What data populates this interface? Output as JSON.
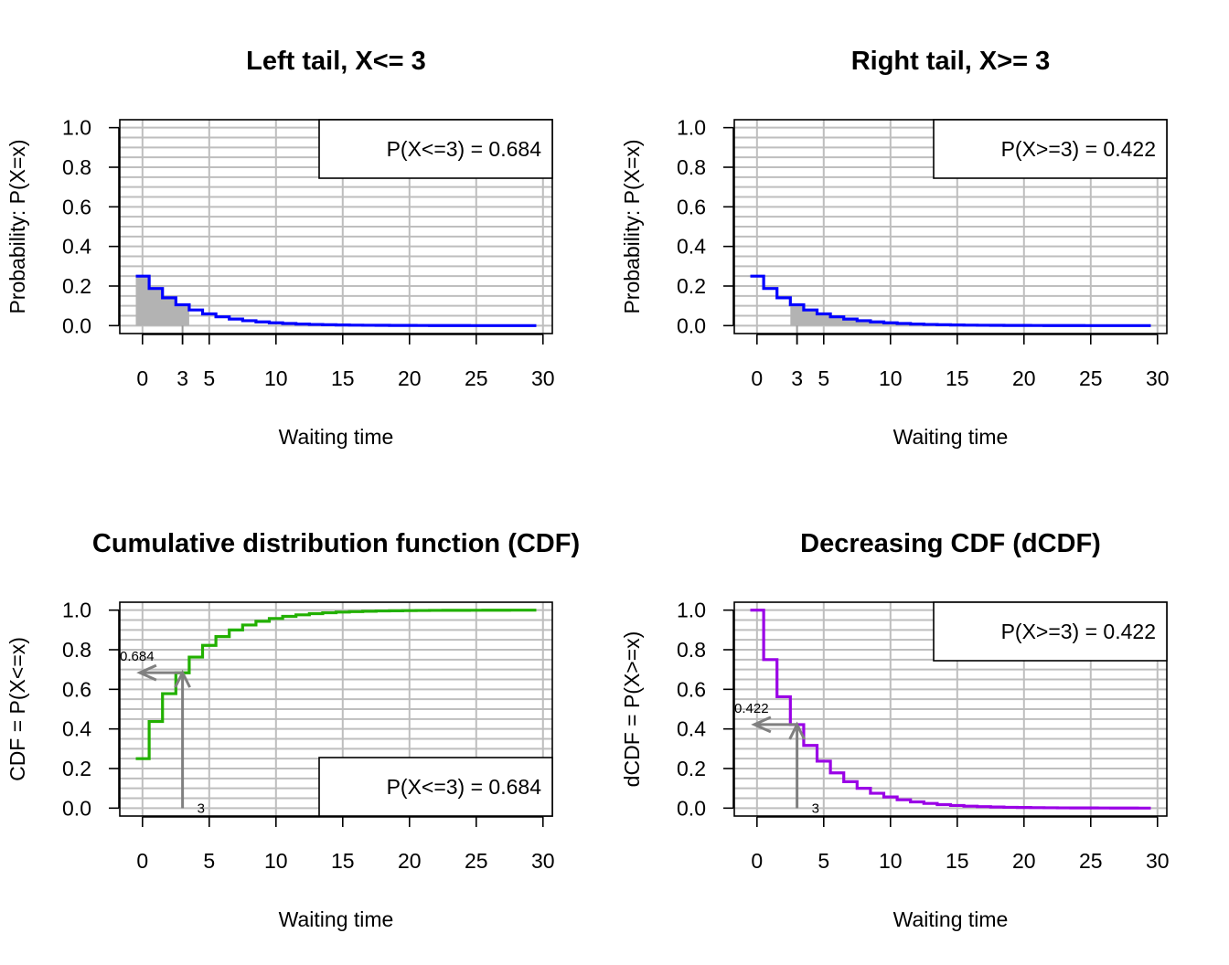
{
  "chart_data": [
    {
      "type": "step",
      "panel_id": "left-tail",
      "title": "Left tail, X<= 3",
      "xlabel": "Waiting time",
      "ylabel": "Probability: P(X=x)",
      "xlim": [
        -1.7,
        30.7
      ],
      "ylim": [
        -0.04,
        1.04
      ],
      "xticks": [
        "0",
        "3",
        "5",
        "10",
        "15",
        "20",
        "25",
        "30"
      ],
      "xtick_values": [
        0,
        3,
        5,
        10,
        15,
        20,
        25,
        30
      ],
      "yticks": [
        "0.0",
        "0.2",
        "0.4",
        "0.6",
        "0.8",
        "1.0"
      ],
      "ytick_values": [
        0,
        0.2,
        0.4,
        0.6,
        0.8,
        1.0
      ],
      "grid": true,
      "line_color": "#0000ff",
      "shade_color": "#b3b3b3",
      "shade_from": -0.5,
      "shade_to": 3.5,
      "marker_x": 3,
      "legend": {
        "text": "P(X<=3) = 0.684",
        "position": "top-right"
      },
      "x": [
        0,
        1,
        2,
        3,
        4,
        5,
        6,
        7,
        8,
        9,
        10,
        11,
        12,
        13,
        14,
        15,
        16,
        17,
        18,
        19,
        20,
        21,
        22,
        23,
        24,
        25,
        26,
        27,
        28,
        29
      ],
      "y": [
        0.25,
        0.1875,
        0.1406,
        0.1055,
        0.0791,
        0.0593,
        0.0445,
        0.0334,
        0.025,
        0.0188,
        0.0141,
        0.0106,
        0.0079,
        0.0059,
        0.0045,
        0.0033,
        0.0025,
        0.0019,
        0.0014,
        0.0011,
        0.0008,
        0.0006,
        0.0004,
        0.0003,
        0.0003,
        0.0002,
        0.0001,
        0.0001,
        0.0001,
        0.0001
      ]
    },
    {
      "type": "step",
      "panel_id": "right-tail",
      "title": "Right tail, X>= 3",
      "xlabel": "Waiting time",
      "ylabel": "Probability: P(X=x)",
      "xlim": [
        -1.7,
        30.7
      ],
      "ylim": [
        -0.04,
        1.04
      ],
      "xticks": [
        "0",
        "3",
        "5",
        "10",
        "15",
        "20",
        "25",
        "30"
      ],
      "xtick_values": [
        0,
        3,
        5,
        10,
        15,
        20,
        25,
        30
      ],
      "yticks": [
        "0.0",
        "0.2",
        "0.4",
        "0.6",
        "0.8",
        "1.0"
      ],
      "ytick_values": [
        0,
        0.2,
        0.4,
        0.6,
        0.8,
        1.0
      ],
      "grid": true,
      "line_color": "#0000ff",
      "shade_color": "#b3b3b3",
      "shade_from": 2.5,
      "shade_to": 29.5,
      "marker_x": 3,
      "legend": {
        "text": "P(X>=3) = 0.422",
        "position": "top-right"
      },
      "x": [
        0,
        1,
        2,
        3,
        4,
        5,
        6,
        7,
        8,
        9,
        10,
        11,
        12,
        13,
        14,
        15,
        16,
        17,
        18,
        19,
        20,
        21,
        22,
        23,
        24,
        25,
        26,
        27,
        28,
        29
      ],
      "y": [
        0.25,
        0.1875,
        0.1406,
        0.1055,
        0.0791,
        0.0593,
        0.0445,
        0.0334,
        0.025,
        0.0188,
        0.0141,
        0.0106,
        0.0079,
        0.0059,
        0.0045,
        0.0033,
        0.0025,
        0.0019,
        0.0014,
        0.0011,
        0.0008,
        0.0006,
        0.0004,
        0.0003,
        0.0003,
        0.0002,
        0.0001,
        0.0001,
        0.0001,
        0.0001
      ]
    },
    {
      "type": "step",
      "panel_id": "cdf",
      "title": "Cumulative distribution function (CDF)",
      "xlabel": "Waiting time",
      "ylabel": "CDF = P(X<=x)",
      "xlim": [
        -1.7,
        30.7
      ],
      "ylim": [
        -0.04,
        1.04
      ],
      "xticks": [
        "0",
        "5",
        "10",
        "15",
        "20",
        "25",
        "30"
      ],
      "xtick_values": [
        0,
        5,
        10,
        15,
        20,
        25,
        30
      ],
      "yticks": [
        "0.0",
        "0.2",
        "0.4",
        "0.6",
        "0.8",
        "1.0"
      ],
      "ytick_values": [
        0,
        0.2,
        0.4,
        0.6,
        0.8,
        1.0
      ],
      "grid": true,
      "line_color": "#22b000",
      "legend": {
        "text": "P(X<=3) = 0.684",
        "position": "bottom-right"
      },
      "arrow": {
        "x": 3,
        "y": 0.684,
        "x_label": "3",
        "y_label": "0.684",
        "color": "#808080"
      },
      "x": [
        0,
        1,
        2,
        3,
        4,
        5,
        6,
        7,
        8,
        9,
        10,
        11,
        12,
        13,
        14,
        15,
        16,
        17,
        18,
        19,
        20,
        21,
        22,
        23,
        24,
        25,
        26,
        27,
        28,
        29
      ],
      "y": [
        0.25,
        0.4375,
        0.5781,
        0.6836,
        0.7627,
        0.822,
        0.8665,
        0.8999,
        0.9249,
        0.9437,
        0.9578,
        0.9683,
        0.9762,
        0.9822,
        0.9866,
        0.99,
        0.9925,
        0.9944,
        0.9958,
        0.9968,
        0.9976,
        0.9982,
        0.9987,
        0.999,
        0.9992,
        0.9994,
        0.9996,
        0.9997,
        0.9998,
        0.9998
      ]
    },
    {
      "type": "step",
      "panel_id": "dcdf",
      "title": "Decreasing CDF (dCDF)",
      "xlabel": "Waiting time",
      "ylabel": "dCDF = P(X>=x)",
      "xlim": [
        -1.7,
        30.7
      ],
      "ylim": [
        -0.04,
        1.04
      ],
      "xticks": [
        "0",
        "5",
        "10",
        "15",
        "20",
        "25",
        "30"
      ],
      "xtick_values": [
        0,
        5,
        10,
        15,
        20,
        25,
        30
      ],
      "yticks": [
        "0.0",
        "0.2",
        "0.4",
        "0.6",
        "0.8",
        "1.0"
      ],
      "ytick_values": [
        0,
        0.2,
        0.4,
        0.6,
        0.8,
        1.0
      ],
      "grid": true,
      "line_color": "#9a00e6",
      "legend": {
        "text": "P(X>=3) = 0.422",
        "position": "top-right"
      },
      "arrow": {
        "x": 3,
        "y": 0.422,
        "x_label": "3",
        "y_label": "0.422",
        "color": "#808080"
      },
      "x": [
        0,
        1,
        2,
        3,
        4,
        5,
        6,
        7,
        8,
        9,
        10,
        11,
        12,
        13,
        14,
        15,
        16,
        17,
        18,
        19,
        20,
        21,
        22,
        23,
        24,
        25,
        26,
        27,
        28,
        29
      ],
      "y": [
        1.0,
        0.75,
        0.5625,
        0.4219,
        0.3164,
        0.2373,
        0.178,
        0.1335,
        0.1001,
        0.0751,
        0.0563,
        0.0422,
        0.0317,
        0.0238,
        0.0178,
        0.0134,
        0.01,
        0.0075,
        0.0056,
        0.0042,
        0.0032,
        0.0024,
        0.0018,
        0.0013,
        0.001,
        0.0008,
        0.0006,
        0.0004,
        0.0003,
        0.0002
      ]
    }
  ]
}
